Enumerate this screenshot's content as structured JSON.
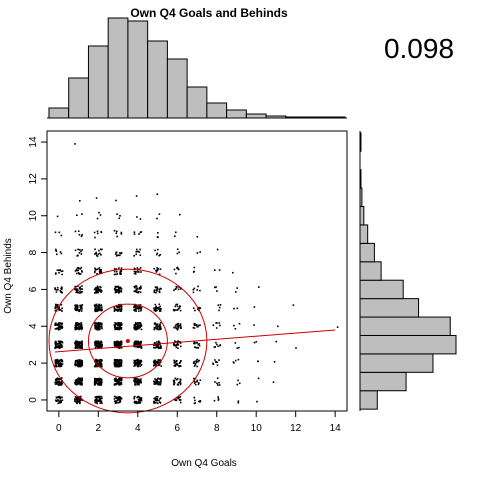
{
  "chart_data": {
    "type": "scatter",
    "title": "Own Q4 Goals and Behinds",
    "xlabel": "Own Q4 Goals",
    "ylabel": "Own Q4 Behinds",
    "correlation": "0.098",
    "xlim": [
      -0.6,
      14.6
    ],
    "ylim": [
      -0.6,
      14.6
    ],
    "x_ticks": [
      "0",
      "2",
      "4",
      "6",
      "8",
      "10",
      "12",
      "14"
    ],
    "y_ticks": [
      "0",
      "2",
      "4",
      "6",
      "8",
      "10",
      "12",
      "14"
    ],
    "grid": false,
    "point_color": "#000000",
    "overlay_color": "#cc0000",
    "hist_color": "#bebebe",
    "mean": [
      3.5,
      3.2
    ],
    "regression_line": {
      "x": [
        -0.2,
        14.0
      ],
      "y": [
        2.6,
        3.8
      ]
    },
    "ellipses": [
      {
        "name": "inner",
        "rx": 2.0,
        "ry": 2.0
      },
      {
        "name": "outer",
        "rx": 4.0,
        "ry": 3.9
      }
    ],
    "joint_density": [
      [
        30,
        40,
        45,
        40,
        32,
        22,
        14,
        8,
        4,
        2,
        1,
        0,
        0,
        0,
        0
      ],
      [
        45,
        60,
        70,
        62,
        50,
        35,
        22,
        12,
        6,
        3,
        1,
        1,
        0,
        0,
        0
      ],
      [
        55,
        75,
        85,
        78,
        60,
        42,
        26,
        15,
        8,
        4,
        2,
        1,
        0,
        0,
        0
      ],
      [
        50,
        70,
        82,
        75,
        58,
        40,
        25,
        14,
        7,
        3,
        2,
        1,
        1,
        0,
        0
      ],
      [
        40,
        58,
        68,
        62,
        48,
        33,
        20,
        11,
        6,
        3,
        1,
        1,
        0,
        0,
        1
      ],
      [
        28,
        42,
        50,
        46,
        36,
        25,
        15,
        8,
        4,
        2,
        1,
        0,
        1,
        0,
        0
      ],
      [
        18,
        28,
        34,
        32,
        25,
        17,
        10,
        6,
        3,
        2,
        1,
        0,
        0,
        0,
        0
      ],
      [
        10,
        16,
        20,
        19,
        15,
        10,
        6,
        3,
        2,
        1,
        0,
        0,
        0,
        0,
        0
      ],
      [
        6,
        9,
        12,
        11,
        9,
        6,
        3,
        2,
        1,
        0,
        0,
        0,
        0,
        0,
        0
      ],
      [
        3,
        5,
        6,
        6,
        5,
        3,
        2,
        1,
        0,
        0,
        0,
        0,
        0,
        0,
        0
      ],
      [
        1,
        2,
        3,
        3,
        2,
        2,
        1,
        0,
        0,
        0,
        0,
        0,
        0,
        0,
        0
      ],
      [
        0,
        1,
        1,
        1,
        1,
        1,
        0,
        0,
        0,
        0,
        0,
        0,
        0,
        0,
        0
      ],
      [
        0,
        0,
        0,
        0,
        0,
        0,
        0,
        0,
        0,
        0,
        0,
        0,
        0,
        0,
        0
      ],
      [
        0,
        0,
        0,
        0,
        0,
        0,
        0,
        0,
        0,
        0,
        0,
        0,
        0,
        0,
        0
      ],
      [
        0,
        1,
        0,
        0,
        0,
        0,
        0,
        0,
        0,
        0,
        0,
        0,
        0,
        0,
        0
      ]
    ],
    "x_histogram": {
      "bin_edges": [
        -0.5,
        0.5,
        1.5,
        2.5,
        3.5,
        4.5,
        5.5,
        6.5,
        7.5,
        8.5,
        9.5,
        10.5,
        11.5,
        12.5,
        13.5,
        14.5
      ],
      "counts": [
        10,
        40,
        72,
        100,
        97,
        77,
        59,
        31,
        15,
        8,
        4,
        2,
        1,
        1,
        1
      ]
    },
    "y_histogram": {
      "bin_edges": [
        -0.5,
        0.5,
        1.5,
        2.5,
        3.5,
        4.5,
        5.5,
        6.5,
        7.5,
        8.5,
        9.5,
        10.5,
        11.5,
        12.5,
        13.5,
        14.5
      ],
      "counts": [
        18,
        48,
        76,
        100,
        94,
        61,
        45,
        22,
        15,
        8,
        4,
        2,
        1,
        0,
        1
      ]
    }
  }
}
